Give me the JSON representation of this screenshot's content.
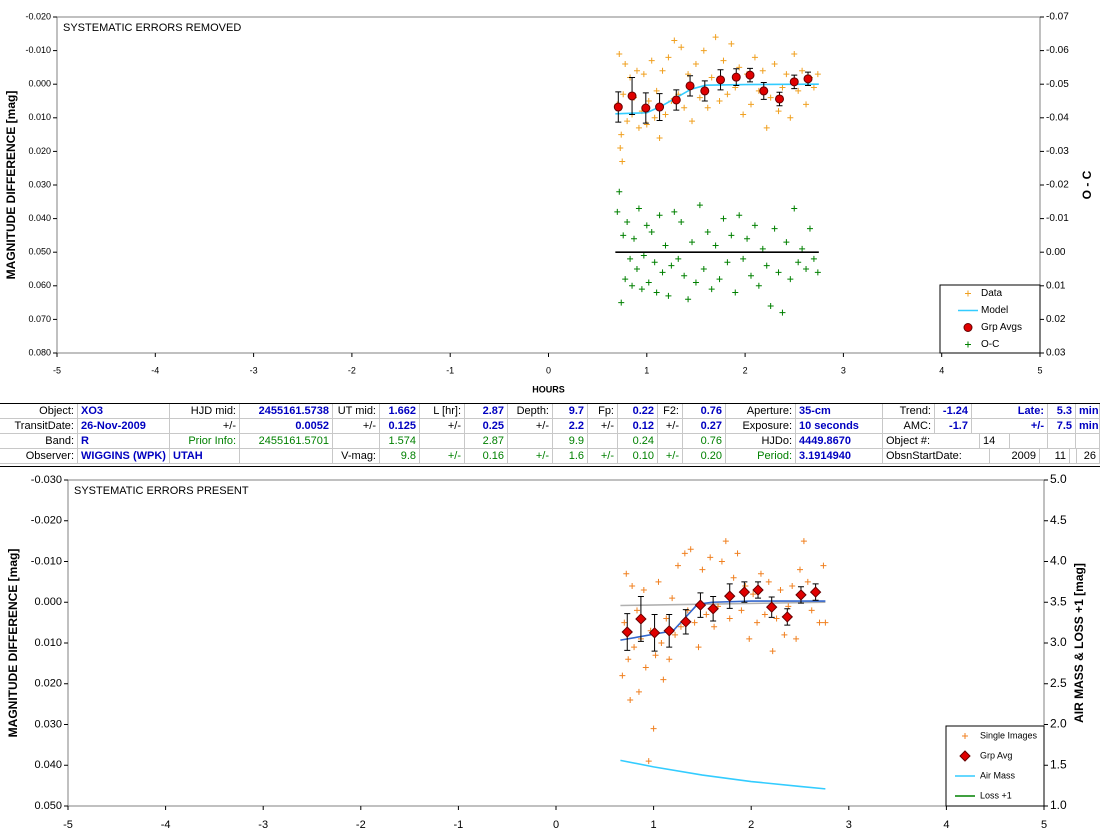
{
  "chart_data": [
    {
      "type": "scatter",
      "title": "SYSTEMATIC ERRORS REMOVED",
      "x_label": "HOURS",
      "y_label": "MAGNITUDE DIFFERENCE [mag]",
      "y2_label": "O - C",
      "xlim": [
        -5,
        5
      ],
      "xticks": [
        -5,
        -4,
        -3,
        -2,
        -1,
        0,
        1,
        2,
        3,
        4,
        5
      ],
      "ylim": [
        -0.02,
        0.08
      ],
      "y_inverted": true,
      "yticks": [
        {
          "value": -0.02,
          "label": "-0.020"
        },
        {
          "value": -0.01,
          "label": "-0.010"
        },
        {
          "value": 0,
          "label": "0.000"
        },
        {
          "value": 0.01,
          "label": "0.010"
        },
        {
          "value": 0.02,
          "label": "0.020"
        },
        {
          "value": 0.03,
          "label": "0.030"
        },
        {
          "value": 0.04,
          "label": "0.040"
        },
        {
          "value": 0.05,
          "label": "0.050"
        },
        {
          "value": 0.06,
          "label": "0.060"
        },
        {
          "value": 0.07,
          "label": "0.070"
        },
        {
          "value": 0.08,
          "label": "0.080"
        }
      ],
      "y2lim": [
        -0.07,
        0.03
      ],
      "y2_inverted": true,
      "y2ticks": [
        -0.07,
        -0.06,
        -0.05,
        -0.04,
        -0.03,
        -0.02,
        -0.01,
        {
          "value": 0,
          "label": "0.00"
        },
        0.01,
        0.02,
        0.03
      ],
      "legend": "lower right",
      "series": [
        {
          "name": "Data",
          "color": "#f0a020",
          "marker": "plus",
          "x": [
            0.7,
            0.72,
            0.73,
            0.74,
            0.75,
            0.76,
            0.78,
            0.8,
            0.83,
            0.85,
            0.87,
            0.9,
            0.92,
            0.95,
            0.97,
            1.0,
            1.02,
            1.05,
            1.08,
            1.1,
            1.13,
            1.16,
            1.19,
            1.22,
            1.25,
            1.28,
            1.32,
            1.35,
            1.38,
            1.42,
            1.46,
            1.5,
            1.54,
            1.58,
            1.62,
            1.66,
            1.7,
            1.74,
            1.78,
            1.82,
            1.86,
            1.9,
            1.94,
            1.98,
            2.02,
            2.06,
            2.1,
            2.14,
            2.18,
            2.22,
            2.26,
            2.3,
            2.34,
            2.38,
            2.42,
            2.46,
            2.5,
            2.54,
            2.58,
            2.62,
            2.66,
            2.7,
            2.74
          ],
          "values": [
            0.006,
            -0.009,
            0.019,
            0.015,
            0.023,
            0.003,
            -0.006,
            0.011,
            -0.002,
            0.009,
            0.004,
            -0.004,
            0.013,
            0.008,
            -0.003,
            0.012,
            0.005,
            -0.007,
            0.01,
            0.002,
            0.016,
            -0.004,
            0.009,
            -0.008,
            0.005,
            -0.013,
            0.003,
            -0.011,
            0.007,
            -0.003,
            0.011,
            -0.006,
            0.004,
            -0.01,
            0.007,
            -0.002,
            -0.014,
            0.005,
            -0.007,
            0.003,
            -0.012,
            0.001,
            -0.005,
            0.009,
            -0.003,
            0.006,
            -0.008,
            0.002,
            -0.004,
            0.013,
            0.004,
            -0.006,
            0.008,
            0.001,
            -0.003,
            0.01,
            -0.009,
            0.002,
            -0.004,
            0.006,
            -0.002,
            0.001,
            -0.003
          ]
        },
        {
          "name": "Model",
          "color": "#33ccff",
          "marker": "line",
          "x": [
            0.68,
            1.0,
            1.15,
            1.3,
            1.45,
            1.6,
            2.0,
            2.75
          ],
          "values": [
            0.0088,
            0.0085,
            0.0065,
            0.004,
            0.0015,
            0.0003,
            0.0001,
            0.0
          ]
        },
        {
          "name": "Grp Avgs",
          "color": "#e00000",
          "marker": "circle",
          "x": [
            0.71,
            0.85,
            0.99,
            1.13,
            1.3,
            1.44,
            1.59,
            1.75,
            1.91,
            2.05,
            2.19,
            2.35,
            2.5,
            2.64
          ],
          "values": [
            0.0068,
            0.0035,
            0.0071,
            0.0068,
            0.0047,
            0.0005,
            0.002,
            -0.0013,
            -0.0021,
            -0.0027,
            0.002,
            0.0044,
            -0.0007,
            -0.0016
          ],
          "errors": [
            0.0045,
            0.0055,
            0.0045,
            0.004,
            0.003,
            0.003,
            0.003,
            0.003,
            0.0025,
            0.002,
            0.0025,
            0.002,
            0.002,
            0.002
          ]
        },
        {
          "name": "O-C",
          "color": "#008000",
          "marker": "plus",
          "axis": "y2",
          "x": [
            0.7,
            0.72,
            0.74,
            0.76,
            0.78,
            0.8,
            0.83,
            0.85,
            0.87,
            0.9,
            0.92,
            0.95,
            0.97,
            1.0,
            1.02,
            1.05,
            1.08,
            1.1,
            1.13,
            1.16,
            1.19,
            1.22,
            1.25,
            1.28,
            1.32,
            1.35,
            1.38,
            1.42,
            1.46,
            1.5,
            1.54,
            1.58,
            1.62,
            1.66,
            1.7,
            1.74,
            1.78,
            1.82,
            1.86,
            1.9,
            1.94,
            1.98,
            2.02,
            2.06,
            2.1,
            2.14,
            2.18,
            2.22,
            2.26,
            2.3,
            2.34,
            2.38,
            2.42,
            2.46,
            2.5,
            2.54,
            2.58,
            2.62,
            2.66,
            2.7,
            2.74
          ],
          "values": [
            -0.012,
            -0.018,
            0.015,
            -0.005,
            0.008,
            -0.009,
            0.002,
            0.01,
            -0.004,
            0.005,
            -0.013,
            0.011,
            0.001,
            -0.008,
            0.009,
            -0.006,
            0.003,
            0.012,
            -0.011,
            0.006,
            -0.002,
            0.013,
            0.004,
            -0.012,
            0.002,
            -0.009,
            0.007,
            0.014,
            -0.003,
            0.009,
            -0.014,
            0.005,
            -0.006,
            0.011,
            -0.002,
            0.008,
            -0.01,
            0.003,
            -0.005,
            0.012,
            -0.011,
            0.002,
            -0.004,
            0.007,
            -0.008,
            0.01,
            -0.001,
            0.004,
            0.016,
            -0.007,
            0.006,
            0.018,
            -0.003,
            0.008,
            -0.013,
            0.003,
            -0.001,
            0.005,
            -0.007,
            0.002,
            0.006
          ]
        },
        {
          "color": "#000000",
          "marker": "line",
          "axis": "y2",
          "x": [
            0.68,
            2.75
          ],
          "values": [
            0,
            0
          ]
        }
      ]
    },
    {
      "type": "scatter",
      "title": "SYSTEMATIC ERRORS PRESENT",
      "y_label": "MAGNITUDE DIFFERENCE [mag]",
      "y2_label": "AIR MASS & LOSS +1 [mag]",
      "xlim": [
        -5,
        5
      ],
      "xticks": [
        -5,
        -4,
        -3,
        -2,
        -1,
        0,
        1,
        2,
        3,
        4,
        5
      ],
      "ylim": [
        -0.03,
        0.05
      ],
      "y_inverted": true,
      "yticks": [
        {
          "value": -0.03,
          "label": "-0.030"
        },
        {
          "value": -0.02,
          "label": "-0.020"
        },
        {
          "value": -0.01,
          "label": "-0.010"
        },
        {
          "value": 0,
          "label": "0.000"
        },
        {
          "value": 0.01,
          "label": "0.010"
        },
        {
          "value": 0.02,
          "label": "0.020"
        },
        {
          "value": 0.03,
          "label": "0.030"
        },
        {
          "value": 0.04,
          "label": "0.040"
        },
        {
          "value": 0.05,
          "label": "0.050"
        }
      ],
      "y2lim": [
        1,
        5
      ],
      "y2ticks": [
        {
          "value": 1,
          "label": "1.0"
        },
        1.5,
        {
          "value": 2,
          "label": "2.0"
        },
        2.5,
        {
          "value": 3,
          "label": "3.0"
        },
        3.5,
        {
          "value": 4,
          "label": "4.0"
        },
        4.5,
        {
          "value": 5,
          "label": "5.0"
        }
      ],
      "legend": "lower right",
      "series": [
        {
          "color": "#b0b0b0",
          "marker": "line",
          "x": [
            0.66,
            2.76
          ],
          "values": [
            0.0008,
            0.0
          ]
        },
        {
          "color": "#3366cc",
          "marker": "line",
          "x": [
            0.66,
            1.2,
            1.45,
            1.6,
            2.0,
            2.76
          ],
          "values": [
            0.0093,
            0.007,
            0.0005,
            0.0,
            -0.0003,
            -0.0003
          ]
        },
        {
          "name": "Single Images",
          "color": "#f08020",
          "marker": "plus",
          "x": [
            0.68,
            0.7,
            0.72,
            0.74,
            0.76,
            0.78,
            0.8,
            0.83,
            0.85,
            0.87,
            0.9,
            0.92,
            0.95,
            0.97,
            1.0,
            1.02,
            1.05,
            1.08,
            1.1,
            1.13,
            1.16,
            1.19,
            1.22,
            1.25,
            1.28,
            1.32,
            1.35,
            1.38,
            1.42,
            1.46,
            1.5,
            1.54,
            1.58,
            1.62,
            1.66,
            1.7,
            1.74,
            1.78,
            1.82,
            1.86,
            1.9,
            1.94,
            1.98,
            2.02,
            2.06,
            2.1,
            2.14,
            2.18,
            2.22,
            2.26,
            2.3,
            2.34,
            2.38,
            2.42,
            2.46,
            2.5,
            2.54,
            2.58,
            2.62,
            2.66,
            2.7,
            2.74,
            2.76
          ],
          "values": [
            0.018,
            0.005,
            -0.007,
            0.014,
            0.024,
            -0.004,
            0.011,
            0.002,
            0.022,
            0.009,
            -0.003,
            0.016,
            0.039,
            0.007,
            0.031,
            0.013,
            -0.005,
            0.01,
            0.019,
            0.004,
            0.014,
            -0.001,
            0.008,
            -0.009,
            0.006,
            -0.012,
            0.002,
            -0.013,
            0.005,
            0.011,
            -0.008,
            0.003,
            -0.011,
            0.006,
            0.001,
            -0.01,
            -0.015,
            0.004,
            -0.006,
            -0.012,
            0.002,
            -0.004,
            0.009,
            -0.002,
            0.005,
            -0.007,
            0.003,
            -0.005,
            0.012,
            0.004,
            -0.003,
            0.008,
            0.001,
            -0.004,
            0.009,
            -0.008,
            -0.015,
            -0.005,
            0.002,
            -0.003,
            0.005,
            -0.009,
            0.005
          ]
        },
        {
          "name": "Grp Avg",
          "color": "#e00000",
          "marker": "diamond",
          "x": [
            0.73,
            0.87,
            1.01,
            1.16,
            1.33,
            1.48,
            1.61,
            1.78,
            1.93,
            2.07,
            2.21,
            2.37,
            2.51,
            2.66
          ],
          "values": [
            0.0073,
            0.0041,
            0.0075,
            0.007,
            0.0048,
            0.0007,
            0.0016,
            -0.0015,
            -0.0025,
            -0.003,
            0.0012,
            0.0036,
            -0.0018,
            -0.0025
          ],
          "errors": [
            0.0045,
            0.0055,
            0.0045,
            0.004,
            0.003,
            0.003,
            0.003,
            0.003,
            0.0025,
            0.002,
            0.0025,
            0.002,
            0.002,
            0.002
          ]
        },
        {
          "name": "Air Mass",
          "color": "#33ccff",
          "marker": "line",
          "axis": "y2",
          "x": [
            0.66,
            1.0,
            1.5,
            2.0,
            2.5,
            2.76
          ],
          "values": [
            1.56,
            1.48,
            1.38,
            1.3,
            1.24,
            1.21
          ]
        },
        {
          "name": "Loss +1",
          "color": "#008000",
          "marker": "line",
          "axis": "y2",
          "x": [],
          "values": []
        }
      ]
    }
  ],
  "table": {
    "rows": [
      [
        "Object:",
        "XO3",
        "HJD mid:",
        "2455161.5738",
        "UT mid:",
        "1.662",
        "L [hr]:",
        "2.87",
        "Depth:",
        "9.7",
        "Fp:",
        "0.22",
        "F2:",
        "0.76",
        "Aperture:",
        "35-cm",
        "Trend:",
        "-1.24",
        "Late:",
        "5.3",
        "min"
      ],
      [
        "TransitDate:",
        "26-Nov-2009",
        "+/-",
        "0.0052",
        "+/-",
        "0.125",
        "+/-",
        "0.25",
        "+/-",
        "2.2",
        "+/-",
        "0.12",
        "+/-",
        "0.27",
        "Exposure:",
        "10 seconds",
        "AMC:",
        "-1.7",
        "+/-",
        "7.5",
        "min"
      ],
      [
        "Band:",
        "R",
        "Prior Info:",
        "2455161.5701",
        null,
        "1.574",
        null,
        "2.87",
        null,
        "9.9",
        null,
        "0.24",
        null,
        "0.76",
        "HJDo:",
        "4449.8670",
        "Object #:",
        "14",
        null,
        null,
        null
      ],
      [
        "Observer:",
        "WIGGINS (WPK)",
        "UTAH",
        null,
        "V-mag:",
        "9.8",
        "+/-",
        "0.16",
        "+/-",
        "1.6",
        "+/-",
        "0.10",
        "+/-",
        "0.20",
        "Period:",
        "3.1914940",
        "ObsnStartDate:",
        "2009",
        "11",
        null,
        "26"
      ]
    ]
  }
}
